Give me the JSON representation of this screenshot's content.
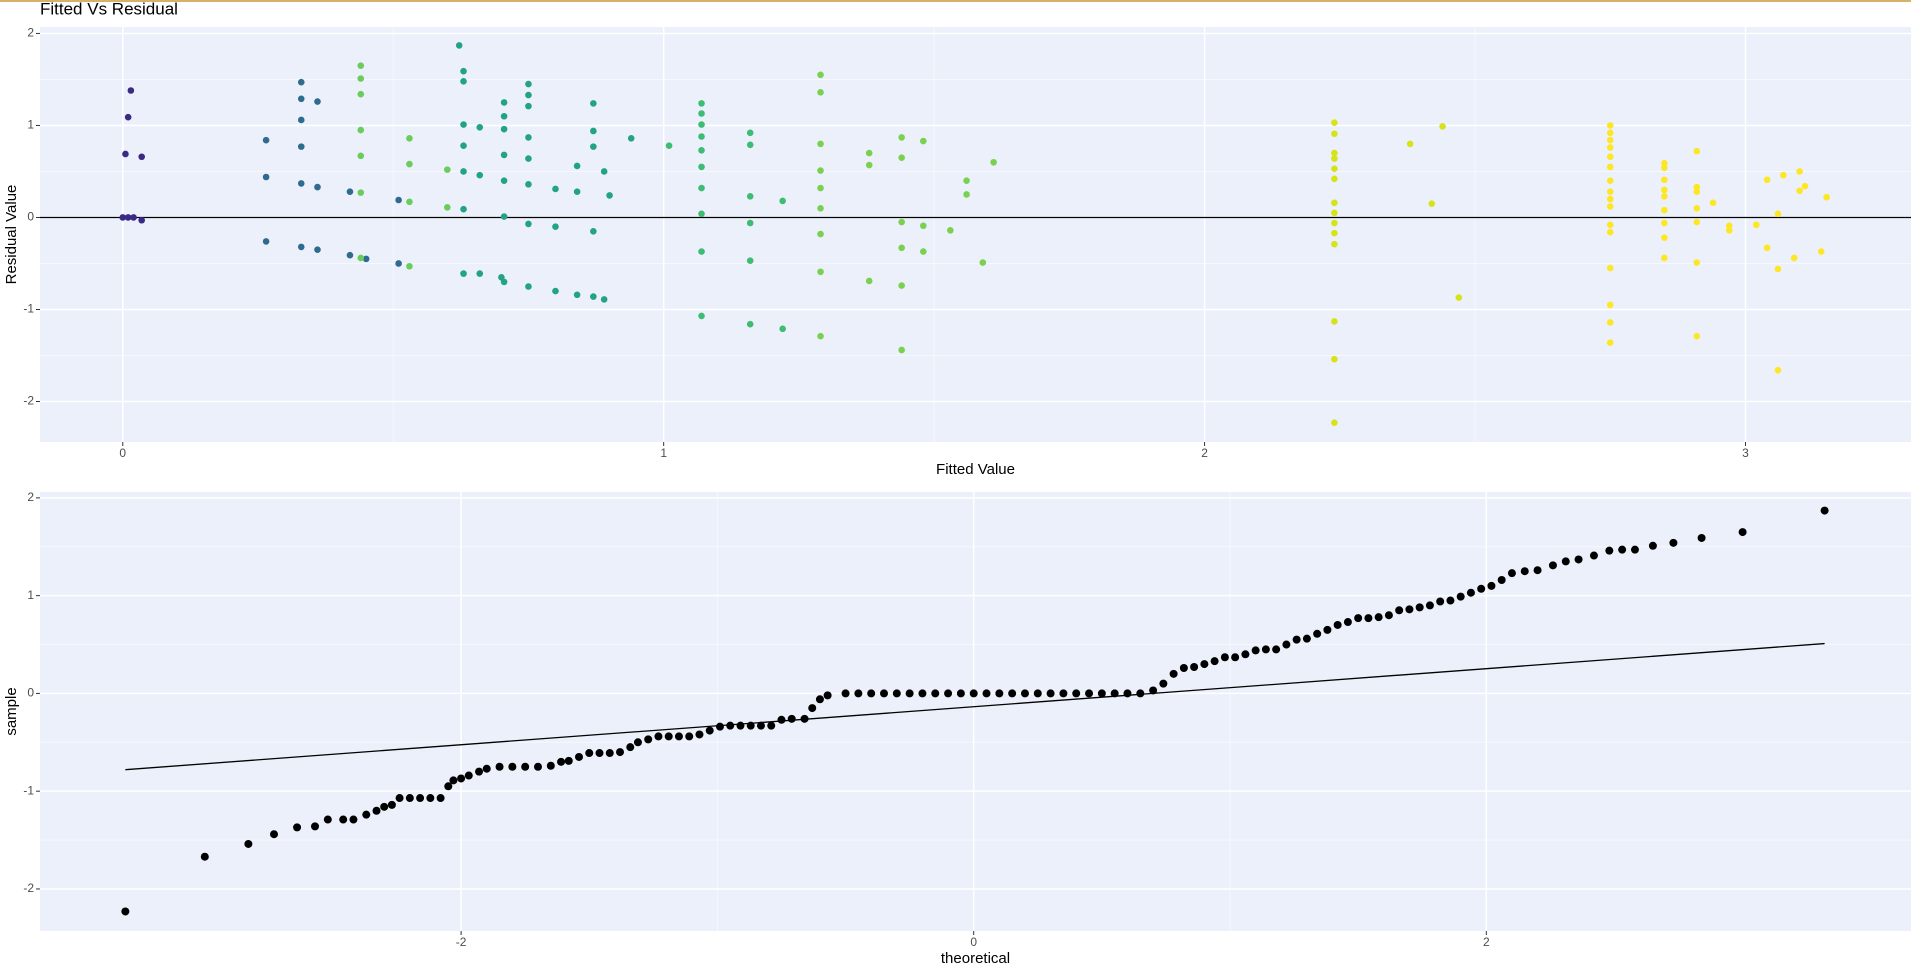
{
  "chart_data": [
    {
      "type": "scatter",
      "title": "Fitted Vs Residual",
      "x_label": "Fitted Value",
      "y_label": "Residual Value",
      "xlim": [
        -0.153,
        3.306
      ],
      "ylim": [
        -2.44,
        2.07
      ],
      "xticks": [
        0,
        1,
        2,
        3
      ],
      "yticks": [
        -2,
        -1,
        0,
        1,
        2
      ],
      "grid": true,
      "hline": 0,
      "series": [
        {
          "color": "#3b2a84",
          "x": [
            0,
            0.01,
            0.02,
            0.005,
            0.01,
            0.015,
            0.035,
            0.035
          ],
          "y": [
            0,
            0,
            0,
            0.69,
            1.09,
            1.38,
            0.66,
            -0.03
          ]
        },
        {
          "color": "#2f6b8e",
          "x": [
            0.265,
            0.265,
            0.265,
            0.33,
            0.33,
            0.33,
            0.33,
            0.33,
            0.33,
            0.36,
            0.36,
            0.36,
            0.42,
            0.42,
            0.45,
            0.51,
            0.51
          ],
          "y": [
            0.84,
            0.44,
            -0.26,
            1.47,
            1.29,
            1.06,
            0.77,
            0.37,
            -0.32,
            1.26,
            0.33,
            -0.35,
            0.28,
            -0.41,
            -0.45,
            0.19,
            -0.5
          ]
        },
        {
          "color": "#22a386",
          "x": [
            0.63,
            0.63,
            0.63,
            0.63,
            0.63,
            0.63,
            0.63,
            0.622,
            0.66,
            0.66,
            0.66,
            0.7,
            0.705,
            0.705,
            0.705,
            0.705,
            0.705,
            0.705,
            0.705,
            0.75,
            0.75,
            0.75,
            0.75,
            0.75,
            0.75,
            0.75,
            0.75,
            0.8,
            0.8,
            0.8,
            0.84,
            0.84,
            0.84,
            0.87,
            0.87,
            0.87,
            0.87,
            0.87,
            0.9,
            0.89,
            0.89,
            0.94
          ],
          "y": [
            1.59,
            1.48,
            1.01,
            0.78,
            0.5,
            0.09,
            -0.61,
            1.87,
            0.98,
            0.46,
            -0.61,
            -0.65,
            1.25,
            1.1,
            0.96,
            0.68,
            0.4,
            0.01,
            -0.7,
            1.45,
            1.33,
            1.21,
            0.87,
            0.64,
            0.36,
            -0.07,
            -0.75,
            0.31,
            -0.1,
            -0.8,
            0.56,
            0.28,
            -0.84,
            1.24,
            0.94,
            0.77,
            -0.15,
            -0.86,
            0.24,
            0.5,
            -0.89,
            0.86
          ]
        },
        {
          "color": "#6acd5b",
          "x": [
            0.44,
            0.44,
            0.44,
            0.44,
            0.44,
            0.44,
            0.44,
            0.53,
            0.53,
            0.53,
            0.53,
            0.6,
            0.6
          ],
          "y": [
            1.65,
            1.51,
            1.34,
            0.95,
            0.67,
            0.27,
            -0.44,
            0.86,
            0.58,
            0.17,
            -0.53,
            0.52,
            0.11
          ]
        },
        {
          "color": "#3fbc73",
          "x": [
            1.01,
            1.07,
            1.07,
            1.07,
            1.07,
            1.07,
            1.07,
            1.07,
            1.07,
            1.07,
            1.07,
            1.16,
            1.16,
            1.16,
            1.16,
            1.16,
            1.16,
            1.22,
            1.22
          ],
          "y": [
            0.78,
            1.24,
            1.13,
            1.01,
            0.88,
            0.73,
            0.55,
            0.32,
            0.04,
            -0.37,
            -1.07,
            0.92,
            0.79,
            0.23,
            -0.06,
            -0.47,
            -1.16,
            0.18,
            -1.21
          ]
        },
        {
          "color": "#7ad151",
          "x": [
            1.29,
            1.29,
            1.29,
            1.29,
            1.29,
            1.29,
            1.29,
            1.29,
            1.29,
            1.38,
            1.38,
            1.38,
            1.44,
            1.44,
            1.44,
            1.44,
            1.44,
            1.44,
            1.48,
            1.48,
            1.48,
            1.53,
            1.56,
            1.56,
            1.59,
            1.61
          ],
          "y": [
            1.55,
            1.36,
            0.8,
            0.51,
            0.32,
            0.1,
            -0.18,
            -0.59,
            -1.29,
            0.7,
            0.57,
            -0.69,
            0.87,
            0.65,
            -0.05,
            -0.33,
            -0.74,
            -1.44,
            0.83,
            -0.09,
            -0.37,
            -0.14,
            0.4,
            0.25,
            -0.49,
            0.6
          ]
        },
        {
          "color": "#d8e219",
          "x": [
            2.24,
            2.24,
            2.24,
            2.24,
            2.24,
            2.24,
            2.24,
            2.24,
            2.24,
            2.24,
            2.24,
            2.24,
            2.24,
            2.24,
            2.38,
            2.44,
            2.42,
            2.47
          ],
          "y": [
            1.03,
            0.91,
            0.7,
            0.64,
            0.53,
            0.42,
            0.16,
            0.05,
            -0.06,
            -0.17,
            -0.29,
            -1.13,
            -1.54,
            -2.23,
            0.8,
            0.99,
            0.15,
            -0.87
          ]
        },
        {
          "color": "#fde725",
          "x": [
            2.75,
            2.75,
            2.75,
            2.75,
            2.75,
            2.75,
            2.75,
            2.75,
            2.75,
            2.75,
            2.75,
            2.75,
            2.75,
            2.75,
            2.75,
            2.75,
            2.85,
            2.85,
            2.85,
            2.85,
            2.85,
            2.85,
            2.85,
            2.85,
            2.85,
            2.91,
            2.91,
            2.91,
            2.91,
            2.91,
            2.91,
            2.91,
            2.94,
            2.97,
            2.97,
            3.02,
            3.04,
            3.04,
            3.06,
            3.06,
            3.06,
            3.07,
            3.09,
            3.1,
            3.1,
            3.11,
            3.14,
            3.15
          ],
          "y": [
            1.0,
            0.92,
            0.84,
            0.76,
            0.66,
            0.55,
            0.4,
            0.28,
            0.2,
            0.12,
            -0.08,
            -0.16,
            -0.55,
            -0.95,
            -1.14,
            -1.36,
            0.59,
            0.54,
            0.41,
            0.3,
            0.23,
            0.08,
            -0.06,
            -0.22,
            -0.44,
            0.72,
            0.33,
            0.28,
            0.1,
            -0.05,
            -0.49,
            -1.29,
            0.16,
            -0.09,
            -0.14,
            -0.08,
            0.41,
            -0.33,
            0.04,
            -0.56,
            -1.66,
            0.46,
            -0.44,
            0.5,
            0.29,
            0.34,
            -0.37,
            0.22
          ]
        }
      ]
    },
    {
      "type": "qq",
      "x_label": "theoretical",
      "y_label": "sample",
      "xlim": [
        -3.643,
        3.657
      ],
      "ylim": [
        -2.43,
        2.06
      ],
      "xticks": [
        -2,
        0,
        2
      ],
      "yticks": [
        -2,
        -1,
        0,
        1,
        2
      ],
      "grid": true,
      "line": {
        "x": [
          -3.31,
          3.32
        ],
        "y": [
          -0.78,
          0.51
        ]
      },
      "series": [
        {
          "color": "#000000",
          "x": [
            -3.31,
            -3.0,
            -2.83,
            -2.73,
            -2.64,
            -2.57,
            -2.52,
            -2.46,
            -2.42,
            -2.37,
            -2.33,
            -2.3,
            -2.27,
            -2.24,
            -2.2,
            -2.16,
            -2.12,
            -2.08,
            -2.05,
            -2.03,
            -2.0,
            -1.97,
            -1.93,
            -1.9,
            -1.85,
            -1.8,
            -1.75,
            -1.7,
            -1.65,
            -1.61,
            -1.58,
            -1.54,
            -1.5,
            -1.46,
            -1.42,
            -1.38,
            -1.34,
            -1.31,
            -1.27,
            -1.23,
            -1.19,
            -1.15,
            -1.11,
            -1.07,
            -1.03,
            -0.99,
            -0.95,
            -0.91,
            -0.87,
            -0.83,
            -0.79,
            -0.75,
            -0.71,
            -0.66,
            -0.63,
            -0.6,
            -0.57,
            -0.5,
            -0.45,
            -0.4,
            -0.35,
            -0.3,
            -0.25,
            -0.2,
            -0.15,
            -0.1,
            -0.05,
            0,
            0.05,
            0.1,
            0.15,
            0.2,
            0.25,
            0.3,
            0.35,
            0.4,
            0.45,
            0.5,
            0.55,
            0.6,
            0.65,
            0.7,
            0.74,
            0.78,
            0.82,
            0.86,
            0.9,
            0.94,
            0.98,
            1.02,
            1.06,
            1.1,
            1.14,
            1.18,
            1.22,
            1.26,
            1.3,
            1.34,
            1.38,
            1.42,
            1.46,
            1.5,
            1.54,
            1.58,
            1.62,
            1.66,
            1.7,
            1.74,
            1.78,
            1.82,
            1.86,
            1.9,
            1.94,
            1.98,
            2.02,
            2.06,
            2.1,
            2.15,
            2.2,
            2.26,
            2.31,
            2.36,
            2.42,
            2.48,
            2.53,
            2.58,
            2.65,
            2.73,
            2.84,
            3.0,
            3.32
          ],
          "y": [
            -2.23,
            -1.67,
            -1.54,
            -1.44,
            -1.37,
            -1.36,
            -1.29,
            -1.29,
            -1.29,
            -1.24,
            -1.2,
            -1.16,
            -1.14,
            -1.07,
            -1.07,
            -1.07,
            -1.07,
            -1.07,
            -0.95,
            -0.89,
            -0.87,
            -0.84,
            -0.8,
            -0.77,
            -0.75,
            -0.75,
            -0.75,
            -0.75,
            -0.74,
            -0.7,
            -0.69,
            -0.65,
            -0.61,
            -0.61,
            -0.61,
            -0.6,
            -0.55,
            -0.5,
            -0.47,
            -0.44,
            -0.44,
            -0.44,
            -0.44,
            -0.42,
            -0.38,
            -0.34,
            -0.33,
            -0.33,
            -0.33,
            -0.33,
            -0.33,
            -0.27,
            -0.26,
            -0.26,
            -0.15,
            -0.06,
            -0.02,
            0,
            0,
            0,
            0,
            0,
            0,
            0,
            0,
            0,
            0,
            0,
            0,
            0,
            0,
            0,
            0,
            0,
            0,
            0,
            0,
            0,
            0,
            0,
            0,
            0.03,
            0.1,
            0.2,
            0.26,
            0.27,
            0.3,
            0.33,
            0.37,
            0.37,
            0.4,
            0.44,
            0.45,
            0.45,
            0.5,
            0.55,
            0.56,
            0.61,
            0.65,
            0.7,
            0.73,
            0.77,
            0.77,
            0.78,
            0.8,
            0.85,
            0.86,
            0.88,
            0.9,
            0.94,
            0.95,
            0.99,
            1.03,
            1.07,
            1.1,
            1.16,
            1.23,
            1.25,
            1.26,
            1.31,
            1.35,
            1.37,
            1.41,
            1.46,
            1.47,
            1.47,
            1.51,
            1.54,
            1.59,
            1.65,
            1.87
          ]
        }
      ]
    }
  ]
}
